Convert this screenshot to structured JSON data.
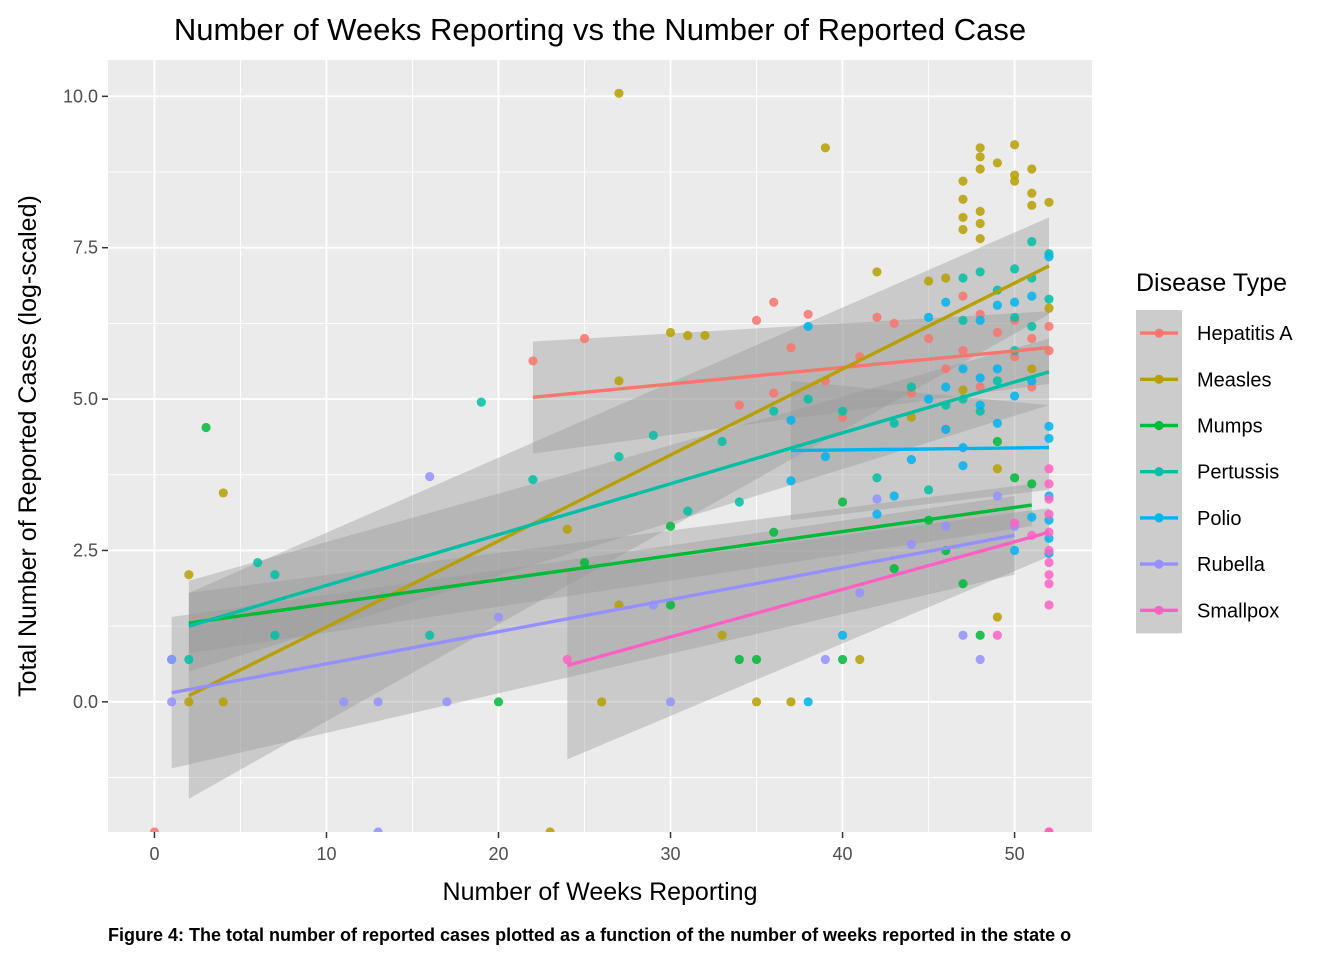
{
  "chart_data": {
    "type": "scatter",
    "title": "Number of Weeks Reporting vs the Number of Reported Case",
    "xlabel": "Number of Weeks Reporting",
    "ylabel": "Total Number of Reported Cases (log-scaled)",
    "caption": "Figure 4: The total number of reported cases plotted as a function of the number of weeks reported in the state o",
    "xlim": [
      -2.7,
      54.5
    ],
    "ylim": [
      -2.15,
      10.6
    ],
    "x_ticks": [
      0,
      10,
      20,
      30,
      40,
      50
    ],
    "x_tick_labels": [
      "0",
      "10",
      "20",
      "30",
      "40",
      "50"
    ],
    "y_ticks": [
      0,
      2.5,
      5,
      7.5,
      10
    ],
    "y_tick_labels": [
      "0.0",
      "2.5",
      "5.0",
      "7.5",
      "10.0"
    ],
    "grid": true,
    "legend_title": "Disease Type",
    "legend_position": "right",
    "series": [
      {
        "name": "Hepatitis A",
        "color": "#F8766D",
        "points": [
          [
            0,
            -2.15
          ],
          [
            22,
            5.63
          ],
          [
            25,
            6.0
          ],
          [
            36,
            6.6
          ],
          [
            35,
            6.3
          ],
          [
            37,
            5.85
          ],
          [
            38,
            6.4
          ],
          [
            42,
            6.35
          ],
          [
            41,
            5.7
          ],
          [
            43,
            6.25
          ],
          [
            45,
            6.0
          ],
          [
            46,
            5.5
          ],
          [
            47,
            6.7
          ],
          [
            47,
            5.8
          ],
          [
            48,
            6.4
          ],
          [
            48,
            5.2
          ],
          [
            49,
            6.1
          ],
          [
            50,
            6.3
          ],
          [
            50,
            5.7
          ],
          [
            51,
            6.0
          ],
          [
            51,
            5.2
          ],
          [
            52,
            5.8
          ],
          [
            52,
            6.2
          ],
          [
            52,
            -2.15
          ],
          [
            34,
            4.9
          ],
          [
            36,
            5.1
          ],
          [
            39,
            5.3
          ],
          [
            40,
            4.7
          ],
          [
            44,
            5.1
          ],
          [
            46,
            4.5
          ]
        ],
        "trend": {
          "x": [
            22,
            52
          ],
          "y": [
            5.03,
            5.85
          ],
          "ci_low": [
            4.1,
            5.25
          ],
          "ci_high": [
            5.95,
            6.45
          ]
        }
      },
      {
        "name": "Measles",
        "color": "#B79F00",
        "points": [
          [
            2,
            2.1
          ],
          [
            2,
            0.0
          ],
          [
            4,
            3.45
          ],
          [
            4,
            0.0
          ],
          [
            23,
            -2.15
          ],
          [
            24,
            2.85
          ],
          [
            26,
            0.0
          ],
          [
            27,
            10.05
          ],
          [
            27,
            5.3
          ],
          [
            27,
            1.6
          ],
          [
            30,
            6.1
          ],
          [
            31,
            6.05
          ],
          [
            32,
            6.05
          ],
          [
            33,
            1.1
          ],
          [
            35,
            0.0
          ],
          [
            37,
            0.0
          ],
          [
            39,
            9.15
          ],
          [
            41,
            0.7
          ],
          [
            42,
            7.1
          ],
          [
            45,
            6.95
          ],
          [
            46,
            7.0
          ],
          [
            47,
            8.6
          ],
          [
            47,
            8.3
          ],
          [
            47,
            8.0
          ],
          [
            47,
            7.8
          ],
          [
            48,
            9.15
          ],
          [
            48,
            9.0
          ],
          [
            48,
            8.8
          ],
          [
            48,
            8.1
          ],
          [
            48,
            7.9
          ],
          [
            48,
            7.65
          ],
          [
            49,
            8.9
          ],
          [
            50,
            9.2
          ],
          [
            50,
            8.7
          ],
          [
            50,
            8.6
          ],
          [
            51,
            8.8
          ],
          [
            51,
            8.4
          ],
          [
            51,
            8.2
          ],
          [
            52,
            8.25
          ],
          [
            52,
            6.5
          ],
          [
            49,
            1.4
          ],
          [
            51,
            5.5
          ],
          [
            47,
            5.15
          ],
          [
            44,
            4.7
          ],
          [
            49,
            3.85
          ]
        ],
        "trend": {
          "x": [
            2,
            52
          ],
          "y": [
            0.1,
            7.2
          ],
          "ci_low": [
            -1.6,
            6.4
          ],
          "ci_high": [
            1.8,
            8.0
          ]
        }
      },
      {
        "name": "Mumps",
        "color": "#00BA38",
        "points": [
          [
            3,
            4.53
          ],
          [
            20,
            0.0
          ],
          [
            25,
            2.3
          ],
          [
            30,
            2.9
          ],
          [
            30,
            1.6
          ],
          [
            34,
            0.7
          ],
          [
            35,
            0.7
          ],
          [
            36,
            2.8
          ],
          [
            40,
            3.3
          ],
          [
            40,
            0.7
          ],
          [
            47,
            1.95
          ],
          [
            48,
            1.1
          ],
          [
            49,
            4.3
          ],
          [
            50,
            3.7
          ],
          [
            51,
            3.6
          ],
          [
            43,
            2.2
          ],
          [
            45,
            3.0
          ],
          [
            46,
            2.5
          ]
        ],
        "trend": {
          "x": [
            2,
            51
          ],
          "y": [
            1.3,
            3.25
          ],
          "ci_low": [
            0.8,
            2.9
          ],
          "ci_high": [
            1.8,
            3.6
          ]
        }
      },
      {
        "name": "Pertussis",
        "color": "#00BFA4",
        "points": [
          [
            1,
            0.7
          ],
          [
            2,
            0.7
          ],
          [
            6,
            2.3
          ],
          [
            7,
            2.1
          ],
          [
            7,
            1.1
          ],
          [
            16,
            1.1
          ],
          [
            19,
            4.95
          ],
          [
            22,
            3.67
          ],
          [
            27,
            4.05
          ],
          [
            29,
            4.4
          ],
          [
            31,
            3.15
          ],
          [
            33,
            4.3
          ],
          [
            34,
            3.3
          ],
          [
            36,
            4.8
          ],
          [
            38,
            5.0
          ],
          [
            40,
            4.8
          ],
          [
            42,
            3.7
          ],
          [
            43,
            4.6
          ],
          [
            44,
            5.2
          ],
          [
            45,
            3.5
          ],
          [
            46,
            4.9
          ],
          [
            47,
            7.0
          ],
          [
            47,
            6.3
          ],
          [
            48,
            7.1
          ],
          [
            49,
            6.8
          ],
          [
            50,
            7.15
          ],
          [
            50,
            6.35
          ],
          [
            51,
            7.6
          ],
          [
            51,
            7.0
          ],
          [
            52,
            7.4
          ],
          [
            52,
            6.65
          ],
          [
            47,
            5.0
          ],
          [
            48,
            4.8
          ],
          [
            49,
            5.3
          ],
          [
            50,
            5.8
          ],
          [
            51,
            6.2
          ]
        ],
        "trend": {
          "x": [
            2,
            52
          ],
          "y": [
            1.25,
            5.45
          ],
          "ci_low": [
            0.5,
            4.9
          ],
          "ci_high": [
            2.0,
            6.0
          ]
        }
      },
      {
        "name": "Polio",
        "color": "#00B4EF",
        "points": [
          [
            38,
            6.2
          ],
          [
            38,
            0.0
          ],
          [
            39,
            4.05
          ],
          [
            40,
            1.1
          ],
          [
            42,
            3.1
          ],
          [
            43,
            3.4
          ],
          [
            44,
            4.0
          ],
          [
            45,
            6.35
          ],
          [
            45,
            5.0
          ],
          [
            46,
            6.6
          ],
          [
            46,
            5.2
          ],
          [
            46,
            4.5
          ],
          [
            47,
            5.5
          ],
          [
            47,
            4.2
          ],
          [
            47,
            3.9
          ],
          [
            48,
            6.3
          ],
          [
            48,
            5.35
          ],
          [
            48,
            4.9
          ],
          [
            49,
            6.55
          ],
          [
            49,
            5.5
          ],
          [
            49,
            4.6
          ],
          [
            50,
            6.6
          ],
          [
            50,
            5.05
          ],
          [
            50,
            2.5
          ],
          [
            51,
            6.7
          ],
          [
            51,
            5.3
          ],
          [
            51,
            3.05
          ],
          [
            52,
            7.35
          ],
          [
            52,
            4.55
          ],
          [
            52,
            4.35
          ],
          [
            52,
            3.4
          ],
          [
            52,
            3.0
          ],
          [
            52,
            2.7
          ],
          [
            52,
            2.45
          ],
          [
            37,
            3.65
          ],
          [
            37,
            4.65
          ]
        ],
        "trend": {
          "x": [
            37,
            52
          ],
          "y": [
            4.15,
            4.2
          ],
          "ci_low": [
            3.0,
            3.5
          ],
          "ci_high": [
            5.3,
            4.9
          ]
        }
      },
      {
        "name": "Rubella",
        "color": "#9590FF",
        "points": [
          [
            1,
            0.7
          ],
          [
            1,
            0.0
          ],
          [
            11,
            0.0
          ],
          [
            13,
            0.0
          ],
          [
            13,
            -2.15
          ],
          [
            16,
            3.72
          ],
          [
            17,
            0.0
          ],
          [
            20,
            1.4
          ],
          [
            29,
            1.6
          ],
          [
            30,
            0.0
          ],
          [
            39,
            0.7
          ],
          [
            41,
            1.8
          ],
          [
            42,
            3.35
          ],
          [
            44,
            2.6
          ],
          [
            46,
            2.9
          ],
          [
            47,
            1.1
          ],
          [
            48,
            0.7
          ],
          [
            49,
            3.4
          ],
          [
            50,
            2.9
          ]
        ],
        "trend": {
          "x": [
            1,
            50
          ],
          "y": [
            0.15,
            2.75
          ],
          "ci_low": [
            -1.1,
            2.1
          ],
          "ci_high": [
            1.4,
            3.4
          ]
        }
      },
      {
        "name": "Smallpox",
        "color": "#FF61C3",
        "points": [
          [
            24,
            0.7
          ],
          [
            49,
            1.1
          ],
          [
            50,
            2.95
          ],
          [
            51,
            2.75
          ],
          [
            52,
            3.85
          ],
          [
            52,
            3.6
          ],
          [
            52,
            3.35
          ],
          [
            52,
            3.1
          ],
          [
            52,
            2.8
          ],
          [
            52,
            2.5
          ],
          [
            52,
            2.3
          ],
          [
            52,
            2.1
          ],
          [
            52,
            1.95
          ],
          [
            52,
            1.6
          ],
          [
            52,
            -2.15
          ]
        ],
        "trend": {
          "x": [
            24,
            52
          ],
          "y": [
            0.6,
            2.8
          ],
          "ci_low": [
            -0.95,
            2.4
          ],
          "ci_high": [
            2.15,
            3.2
          ]
        }
      }
    ]
  }
}
